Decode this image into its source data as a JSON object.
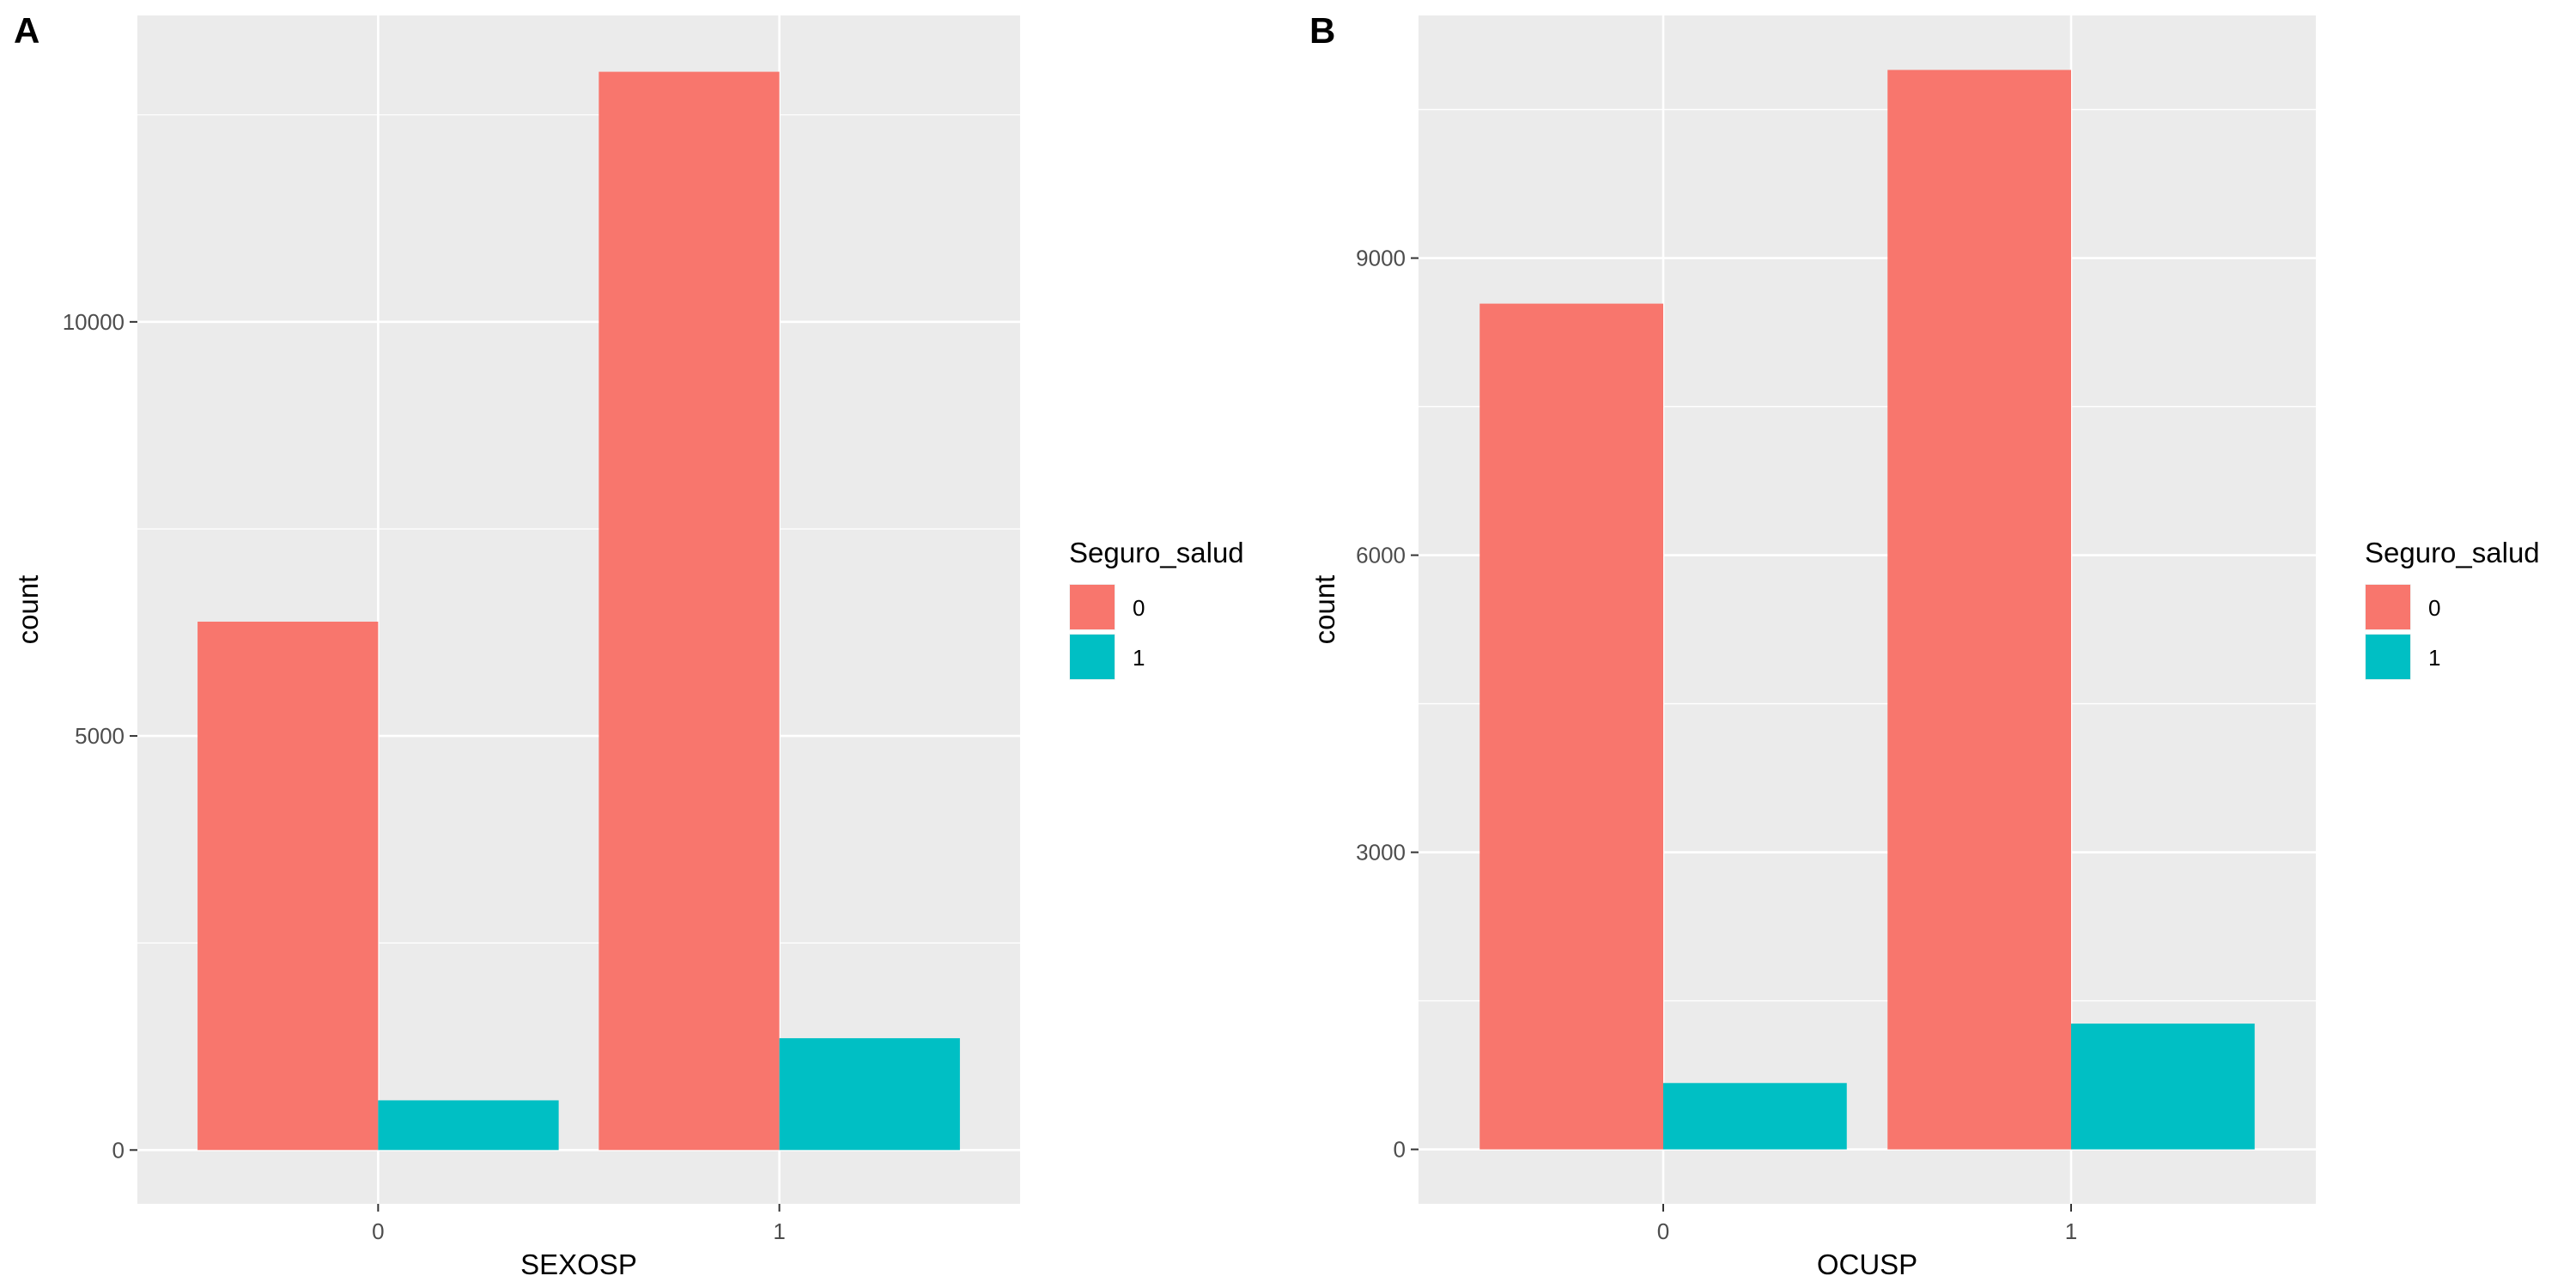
{
  "chart_data": [
    {
      "panel_label": "A",
      "type": "bar",
      "xlabel": "SEXOSP",
      "ylabel": "count",
      "categories": [
        "0",
        "1"
      ],
      "series": [
        {
          "name": "0",
          "color": "#F8766D",
          "values": [
            6380,
            13020
          ]
        },
        {
          "name": "1",
          "color": "#00BFC4",
          "values": [
            600,
            1350
          ]
        }
      ],
      "yticks": [
        0,
        5000,
        10000
      ],
      "ytick_labels": [
        "0",
        "5000",
        "10000"
      ],
      "ylim": [
        -650,
        13700
      ],
      "grid": true,
      "legend": {
        "title": "Seguro_salud",
        "position": "right",
        "items": [
          "0",
          "1"
        ]
      }
    },
    {
      "panel_label": "B",
      "type": "bar",
      "xlabel": "OCUSP",
      "ylabel": "count",
      "categories": [
        "0",
        "1"
      ],
      "series": [
        {
          "name": "0",
          "color": "#F8766D",
          "values": [
            8540,
            10900
          ]
        },
        {
          "name": "1",
          "color": "#00BFC4",
          "values": [
            670,
            1270
          ]
        }
      ],
      "yticks": [
        0,
        3000,
        6000,
        9000
      ],
      "ytick_labels": [
        "0",
        "3000",
        "6000",
        "9000"
      ],
      "ylim": [
        -550,
        11450
      ],
      "grid": true,
      "legend": {
        "title": "Seguro_salud",
        "position": "right",
        "items": [
          "0",
          "1"
        ]
      }
    }
  ]
}
